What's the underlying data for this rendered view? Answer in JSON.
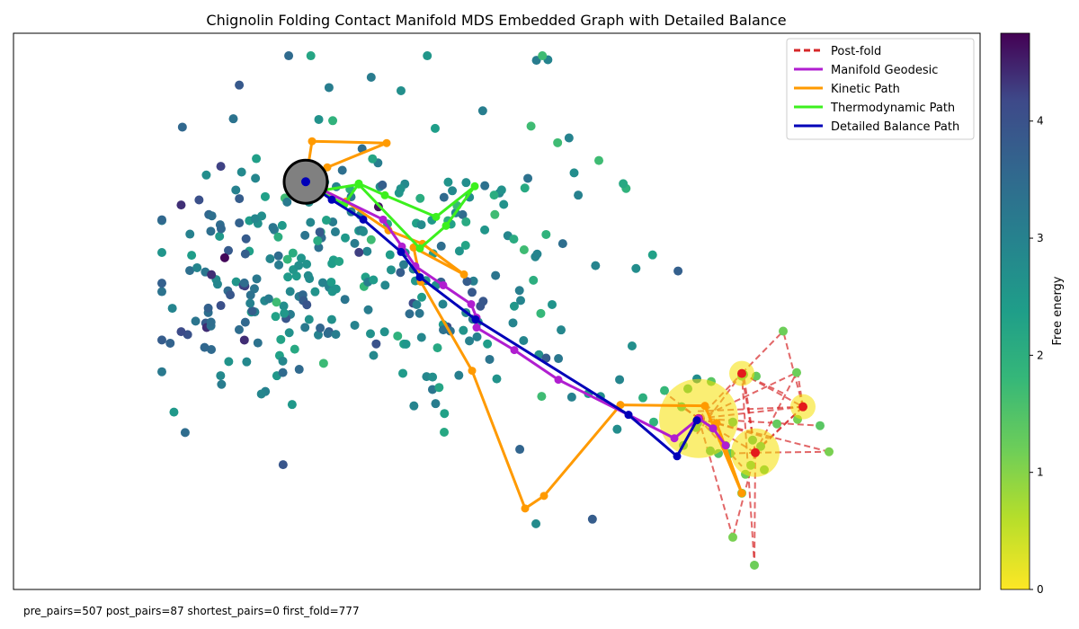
{
  "chart_data": {
    "type": "scatter",
    "title": "Chignolin Folding Contact Manifold MDS Embedded Graph with Detailed Balance",
    "colorbar": {
      "label": "Free energy",
      "range": [
        0,
        4.75
      ],
      "ticks": [
        "0",
        "1",
        "2",
        "3",
        "4"
      ],
      "colormap": "viridis_r"
    },
    "legend": {
      "placement": "top-right",
      "items": [
        {
          "label": "Post-fold",
          "color": "#d62728",
          "style": "dashed"
        },
        {
          "label": "Manifold Geodesic",
          "color": "#b01ed0",
          "style": "solid"
        },
        {
          "label": "Kinetic Path",
          "color": "#ff9a00",
          "style": "solid"
        },
        {
          "label": "Thermodynamic Path",
          "color": "#3cf01e",
          "style": "solid"
        },
        {
          "label": "Detailed Balance Path",
          "color": "#0000b8",
          "style": "solid"
        }
      ]
    },
    "footer": "pre_pairs=507 post_pairs=87 shortest_pairs=0 first_fold=777",
    "xlim": [
      0,
      1075
    ],
    "ylim": [
      0,
      618
    ],
    "folded_points": [
      [
        761,
        433,
        1.7
      ],
      [
        778,
        439,
        1.6
      ],
      [
        792,
        458,
        1.5
      ],
      [
        820,
        480,
        1.3
      ],
      [
        745,
        458,
        1.6
      ],
      [
        759,
        438,
        1.5
      ],
      [
        775,
        464,
        1.6
      ],
      [
        797,
        467,
        1.4
      ],
      [
        822,
        452,
        1.5
      ],
      [
        814,
        490,
        1.2
      ],
      [
        872,
        429,
        1.1
      ],
      [
        897,
        436,
        1.4
      ],
      [
        907,
        465,
        1.1
      ],
      [
        856,
        331,
        1.2
      ],
      [
        810,
        381,
        1.3
      ],
      [
        826,
        381,
        1.3
      ],
      [
        812,
        379,
        1.4
      ],
      [
        871,
        377,
        1.2
      ],
      [
        800,
        432,
        1.5
      ],
      [
        831,
        459,
        1.5
      ],
      [
        776,
        387,
        1.4
      ],
      [
        750,
        395,
        1.5
      ],
      [
        743,
        415,
        1.7
      ],
      [
        849,
        434,
        1.3
      ],
      [
        784,
        467,
        1.5
      ],
      [
        835,
        485,
        1.3
      ],
      [
        810,
        511,
        1.2
      ],
      [
        800,
        560,
        1.1
      ],
      [
        824,
        591,
        1.2
      ],
      [
        724,
        397,
        1.8
      ],
      [
        700,
        405,
        2.0
      ],
      [
        712,
        432,
        1.9
      ]
    ],
    "hubs": [
      {
        "x": 762,
        "y": 428,
        "r": 44
      },
      {
        "x": 825,
        "y": 466,
        "r": 27
      },
      {
        "x": 810,
        "y": 378,
        "r": 14
      },
      {
        "x": 878,
        "y": 415,
        "r": 14
      }
    ],
    "hub_links": [
      [
        762,
        428,
        825,
        466
      ],
      [
        762,
        428,
        810,
        378
      ],
      [
        762,
        428,
        878,
        415
      ],
      [
        825,
        466,
        878,
        415
      ],
      [
        825,
        466,
        810,
        378
      ],
      [
        810,
        378,
        878,
        415
      ],
      [
        762,
        428,
        907,
        465
      ],
      [
        762,
        428,
        897,
        436
      ],
      [
        825,
        466,
        907,
        465
      ],
      [
        825,
        466,
        800,
        560
      ],
      [
        825,
        466,
        824,
        591
      ],
      [
        810,
        378,
        824,
        591
      ],
      [
        762,
        428,
        800,
        560
      ],
      [
        878,
        415,
        872,
        377
      ],
      [
        878,
        415,
        856,
        331
      ],
      [
        810,
        378,
        856,
        331
      ],
      [
        762,
        428,
        871,
        377
      ],
      [
        825,
        466,
        871,
        377
      ],
      [
        762,
        428,
        743,
        415
      ],
      [
        762,
        428,
        720,
        396
      ],
      [
        825,
        466,
        812,
        379
      ],
      [
        878,
        415,
        830,
        460
      ],
      [
        762,
        428,
        840,
        450
      ],
      [
        825,
        466,
        797,
        467
      ],
      [
        762,
        428,
        810,
        481
      ],
      [
        878,
        415,
        760,
        420
      ],
      [
        810,
        378,
        760,
        445
      ],
      [
        810,
        378,
        856,
        400
      ]
    ],
    "manifold_geodesic": [
      [
        325,
        165
      ],
      [
        411,
        207
      ],
      [
        432,
        237
      ],
      [
        447,
        259
      ],
      [
        478,
        280
      ],
      [
        509,
        301
      ],
      [
        515,
        316
      ],
      [
        515,
        327
      ],
      [
        557,
        352
      ],
      [
        606,
        385
      ],
      [
        684,
        424
      ],
      [
        735,
        450
      ],
      [
        762,
        428
      ],
      [
        778,
        439
      ],
      [
        792,
        458
      ]
    ],
    "kinetic_path": [
      [
        325,
        165
      ],
      [
        332,
        120
      ],
      [
        415,
        122
      ],
      [
        349,
        149
      ],
      [
        326,
        165
      ],
      [
        370,
        187
      ],
      [
        417,
        219
      ],
      [
        455,
        234
      ],
      [
        501,
        268
      ],
      [
        445,
        238
      ],
      [
        453,
        276
      ],
      [
        510,
        375
      ],
      [
        569,
        528
      ],
      [
        590,
        514
      ],
      [
        675,
        413
      ],
      [
        769,
        414
      ],
      [
        810,
        511
      ],
      [
        782,
        433
      ]
    ],
    "thermodynamic_path": [
      [
        325,
        165
      ],
      [
        341,
        176
      ],
      [
        368,
        190
      ],
      [
        384,
        167
      ],
      [
        413,
        180
      ],
      [
        470,
        204
      ],
      [
        513,
        170
      ],
      [
        481,
        214
      ],
      [
        452,
        239
      ],
      [
        384,
        168
      ],
      [
        335,
        176
      ],
      [
        325,
        165
      ]
    ],
    "detailed_balance_path": [
      [
        325,
        165
      ],
      [
        354,
        185
      ],
      [
        389,
        207
      ],
      [
        431,
        243
      ],
      [
        452,
        271
      ],
      [
        514,
        318
      ],
      [
        684,
        424
      ],
      [
        738,
        470
      ],
      [
        760,
        430
      ]
    ],
    "unfolded_start": {
      "x": 325,
      "y": 165
    }
  }
}
